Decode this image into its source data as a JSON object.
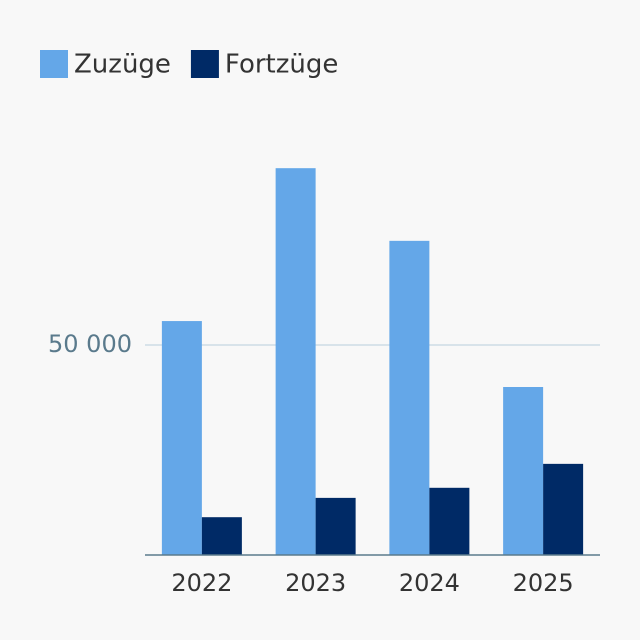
{
  "chart_data": {
    "type": "bar",
    "categories": [
      "2022",
      "2023",
      "2024",
      "2025"
    ],
    "series": [
      {
        "name": "Zuzüge",
        "color": "#64a7e8",
        "values": [
          55700,
          92100,
          74800,
          40000
        ]
      },
      {
        "name": "Fortzüge",
        "color": "#002a66",
        "values": [
          9000,
          13600,
          16000,
          21700
        ]
      }
    ],
    "ylim": [
      0,
      100000
    ],
    "yticks": [
      {
        "value": 50000,
        "label": "50 000"
      }
    ],
    "grid": true,
    "legend": "top-left"
  }
}
